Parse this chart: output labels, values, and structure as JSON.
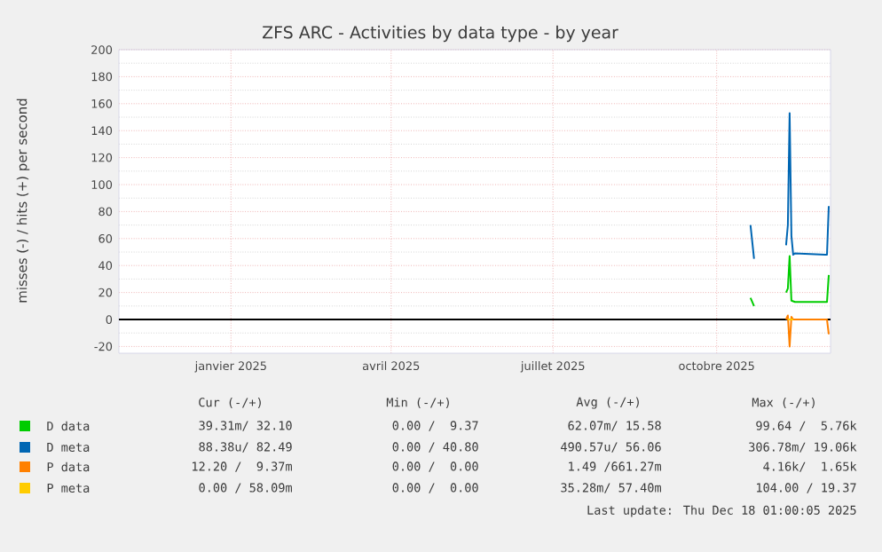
{
  "chart_data": {
    "type": "line",
    "title": "ZFS ARC - Activities by data type - by year",
    "ylabel": "misses (-) / hits (+) per second",
    "xlim": [
      "2024-11-13",
      "2025-12-18"
    ],
    "xticks": [
      {
        "value": "2025-01-15",
        "label": "janvier 2025"
      },
      {
        "value": "2025-04-15",
        "label": "avril 2025"
      },
      {
        "value": "2025-07-15",
        "label": "juillet 2025"
      },
      {
        "value": "2025-10-15",
        "label": "octobre 2025"
      }
    ],
    "ylim": [
      -25,
      200
    ],
    "yticks": [
      -20,
      0,
      20,
      40,
      60,
      80,
      100,
      120,
      140,
      160,
      180,
      200
    ],
    "grid": true,
    "legend": "bottom",
    "series": [
      {
        "name": "D data",
        "color": "#00cc00",
        "x": [
          "2025-11-03",
          "2025-11-05",
          "2025-11-06",
          "2025-11-23",
          "2025-11-24",
          "2025-11-25",
          "2025-11-26",
          "2025-11-28",
          "2025-12-16",
          "2025-12-17"
        ],
        "values": [
          16,
          10,
          null,
          20,
          23,
          47,
          14,
          13,
          13,
          33
        ]
      },
      {
        "name": "D meta",
        "color": "#0066b3",
        "x": [
          "2025-11-03",
          "2025-11-05",
          "2025-11-06",
          "2025-11-23",
          "2025-11-24",
          "2025-11-25",
          "2025-11-26",
          "2025-11-27",
          "2025-11-28",
          "2025-12-15",
          "2025-12-16",
          "2025-12-17"
        ],
        "values": [
          70,
          45,
          null,
          55,
          70,
          153,
          62,
          48,
          49,
          48,
          48,
          84
        ]
      },
      {
        "name": "P data",
        "color": "#ff8000",
        "x": [
          "2025-11-23",
          "2025-11-24",
          "2025-11-25",
          "2025-11-26",
          "2025-11-27",
          "2025-12-16",
          "2025-12-17"
        ],
        "values": [
          0,
          3,
          -20,
          2,
          0,
          0,
          -11
        ]
      },
      {
        "name": "P meta",
        "color": "#ffcc00",
        "x": [
          "2025-11-24",
          "2025-11-27"
        ],
        "values": [
          0,
          0
        ]
      }
    ],
    "ref_lines": [
      {
        "axis": "y",
        "value": 0,
        "color": "#000000"
      }
    ],
    "annotations": [
      "Cur (-/+)",
      "Min (-/+)",
      "Avg (-/+)",
      "Max (-/+)",
      "39.31m/ 32.10",
      "0.00 /  9.37",
      "62.07m/ 15.58",
      "99.64 /  5.76k",
      "88.38u/ 82.49",
      "0.00 / 40.80",
      "490.57u/ 56.06",
      "306.78m/ 19.06k",
      "12.20 /  9.37m",
      "0.00 /  0.00",
      "1.49 /661.27m",
      "4.16k/  1.65k",
      "0.00 / 58.09m",
      "0.00 /  0.00",
      "35.28m/ 57.40m",
      "104.00 / 19.37",
      "Last update: Thu Dec 18 01:00:05 2025"
    ]
  }
}
